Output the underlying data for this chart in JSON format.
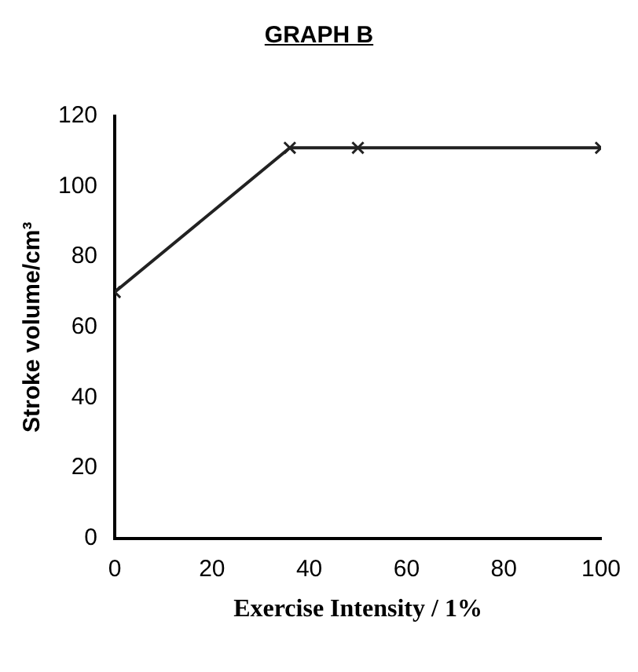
{
  "chart_data": {
    "type": "line",
    "title": "GRAPH B",
    "xlabel": "Exercise Intensity / 1%",
    "ylabel": "Stroke volume/cm³",
    "x": [
      0,
      36,
      50,
      100
    ],
    "values": [
      70,
      111,
      111,
      111
    ],
    "color": "#222222",
    "marker": "cross",
    "line_style": "solid",
    "xlim": [
      0,
      100
    ],
    "xticks": [
      0,
      20,
      40,
      60,
      80,
      100
    ],
    "ylim": [
      0,
      120
    ],
    "yticks": [
      0,
      20,
      40,
      60,
      80,
      100,
      120
    ],
    "grid": false,
    "legend": false
  }
}
